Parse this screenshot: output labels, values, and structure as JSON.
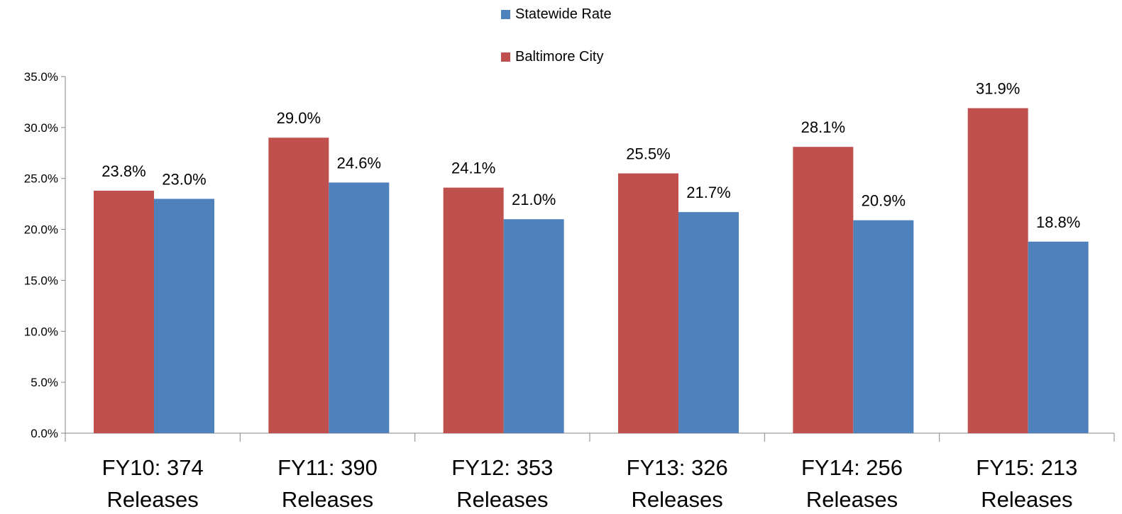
{
  "chart_data": {
    "type": "bar",
    "categories": [
      [
        "FY10: 374",
        "Releases"
      ],
      [
        "FY11: 390",
        "Releases"
      ],
      [
        "FY12: 353",
        "Releases"
      ],
      [
        "FY13: 326",
        "Releases"
      ],
      [
        "FY14: 256",
        "Releases"
      ],
      [
        "FY15: 213",
        "Releases"
      ]
    ],
    "series": [
      {
        "name": "Baltimore City",
        "color": "#C0504D",
        "values": [
          23.8,
          29.0,
          24.1,
          25.5,
          28.1,
          31.9
        ],
        "labels": [
          "23.8%",
          "29.0%",
          "24.1%",
          "25.5%",
          "28.1%",
          "31.9%"
        ]
      },
      {
        "name": "Statewide Rate",
        "color": "#4F81BD",
        "values": [
          23.0,
          24.6,
          21.0,
          21.7,
          20.9,
          18.8
        ],
        "labels": [
          "23.0%",
          "24.6%",
          "21.0%",
          "21.7%",
          "20.9%",
          "18.8%"
        ]
      }
    ],
    "legend": {
      "position": "top",
      "entries": [
        "Statewide Rate",
        "Baltimore City"
      ]
    },
    "yticks": [
      0,
      5,
      10,
      15,
      20,
      25,
      30,
      35
    ],
    "ytick_labels": [
      "0.0%",
      "5.0%",
      "10.0%",
      "15.0%",
      "20.0%",
      "25.0%",
      "30.0%",
      "35.0%"
    ],
    "ylim": [
      0,
      35
    ],
    "grid": false,
    "title": "",
    "xlabel": "",
    "ylabel": ""
  }
}
